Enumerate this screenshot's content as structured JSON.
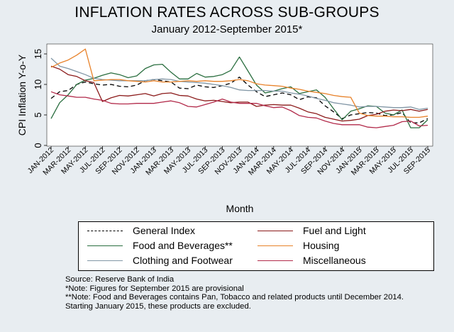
{
  "chart_data": {
    "type": "line",
    "title": "INFLATION RATES ACROSS SUB-GROUPS",
    "subtitle": "January 2012-September 2015*",
    "xlabel": "Month",
    "ylabel": "CPI Inflation Y-o-Y",
    "ylim": [
      0,
      17
    ],
    "yticks": [
      0,
      5,
      10,
      15
    ],
    "grid": false,
    "legend_position": "bottom",
    "x": [
      "JAN-2012",
      "FEB-2012",
      "MAR-2012",
      "APR-2012",
      "MAY-2012",
      "JUN-2012",
      "JUL-2012",
      "AUG-2012",
      "SEP-2012",
      "OCT-2012",
      "NOV-2012",
      "DEC-2012",
      "JAN-2013",
      "FEB-2013",
      "MAR-2013",
      "APR-2013",
      "MAY-2013",
      "JUN-2013",
      "JUL-2013",
      "AUG-2013",
      "SEP-2013",
      "OCT-2013",
      "NOV-2013",
      "DEC-2013",
      "JAN-2014",
      "FEB-2014",
      "MAR-2014",
      "APR-2014",
      "MAY-2014",
      "JUN-2014",
      "JUL-2014",
      "AUG-2014",
      "SEP-2014",
      "OCT-2014",
      "NOV-2014",
      "DEC-2014",
      "JAN-2015",
      "FEB-2015",
      "MAR-2015",
      "APR-2015",
      "MAY-2015",
      "JUN-2015",
      "JUL-2015",
      "AUG-2015",
      "SEP-2015"
    ],
    "xtick_labels": [
      "JAN-2012",
      "MAR-2012",
      "MAY-2012",
      "JUL-2012",
      "SEP-2012",
      "NOV-2012",
      "JAN-2013",
      "MAR-2013",
      "MAY-2013",
      "JUL-2013",
      "SEP-2013",
      "NOV-2013",
      "JAN-2014",
      "MAR-2014",
      "MAY-2014",
      "JUL-2014",
      "SEP-2014",
      "NOV-2014",
      "JAN-2015",
      "MAR-2015",
      "MAY-2015",
      "JUL-2015",
      "SEP-2015"
    ],
    "series": [
      {
        "name": "General Index",
        "color": "#000000",
        "dash": "dash",
        "values": [
          7.7,
          8.8,
          9.0,
          10.0,
          10.4,
          10.1,
          9.9,
          10.0,
          9.7,
          9.6,
          9.9,
          10.6,
          10.8,
          10.6,
          10.4,
          9.4,
          9.3,
          9.9,
          9.6,
          9.5,
          9.8,
          10.2,
          11.2,
          9.9,
          8.8,
          8.0,
          8.3,
          8.6,
          8.3,
          7.5,
          7.96,
          7.8,
          6.5,
          5.5,
          4.4,
          5.0,
          5.2,
          5.4,
          5.3,
          4.9,
          5.0,
          5.4,
          3.7,
          3.7,
          4.4
        ]
      },
      {
        "name": "Food and Beverages**",
        "color": "#2a6e3f",
        "dash": "solid",
        "values": [
          4.4,
          7.0,
          8.3,
          10.0,
          10.7,
          11.0,
          11.5,
          11.9,
          11.6,
          11.1,
          11.4,
          12.6,
          13.2,
          13.3,
          12.0,
          10.9,
          10.9,
          11.8,
          11.2,
          11.3,
          11.6,
          12.3,
          14.5,
          12.2,
          9.9,
          8.6,
          8.9,
          9.3,
          9.6,
          8.5,
          8.8,
          9.1,
          7.9,
          6.0,
          4.2,
          5.6,
          6.0,
          6.5,
          6.4,
          5.3,
          5.0,
          5.8,
          2.9,
          2.9,
          4.2
        ]
      },
      {
        "name": "Clothing and Footwear",
        "color": "#8196a5",
        "dash": "solid",
        "values": [
          14.3,
          13.0,
          12.6,
          12.1,
          11.6,
          11.0,
          10.8,
          10.7,
          10.6,
          10.6,
          10.6,
          10.6,
          10.8,
          10.9,
          10.8,
          10.5,
          10.4,
          10.3,
          10.2,
          10.0,
          9.8,
          9.5,
          9.1,
          9.0,
          9.0,
          9.0,
          8.9,
          8.9,
          8.6,
          8.4,
          8.1,
          7.7,
          7.4,
          7.0,
          6.8,
          6.6,
          6.3,
          6.4,
          6.4,
          6.3,
          6.2,
          6.2,
          6.3,
          5.9,
          6.1
        ]
      },
      {
        "name": "Fuel and Light",
        "color": "#8b1a1a",
        "dash": "solid",
        "values": [
          13.0,
          12.5,
          11.6,
          11.3,
          10.6,
          10.3,
          7.2,
          7.8,
          8.2,
          8.1,
          8.3,
          8.5,
          8.1,
          8.5,
          8.6,
          8.2,
          8.1,
          7.6,
          7.3,
          7.4,
          7.2,
          7.0,
          7.1,
          7.1,
          6.4,
          6.6,
          6.7,
          6.6,
          6.6,
          6.1,
          5.5,
          5.2,
          4.6,
          4.3,
          4.0,
          4.1,
          4.3,
          4.9,
          5.1,
          5.6,
          5.8,
          5.7,
          5.9,
          5.6,
          5.9
        ]
      },
      {
        "name": "Housing",
        "color": "#e8822a",
        "dash": "solid",
        "values": [
          12.8,
          13.5,
          14.0,
          14.8,
          15.8,
          10.6,
          10.7,
          10.8,
          10.8,
          10.6,
          10.5,
          10.4,
          10.6,
          10.4,
          10.4,
          10.5,
          10.6,
          10.5,
          10.6,
          10.5,
          10.5,
          10.6,
          10.8,
          10.6,
          10.1,
          9.9,
          9.8,
          9.7,
          9.4,
          9.2,
          8.9,
          8.7,
          8.5,
          8.2,
          8.0,
          7.9,
          5.3,
          4.9,
          4.8,
          4.8,
          4.7,
          4.7,
          4.6,
          4.6,
          4.8
        ]
      },
      {
        "name": "Miscellaneous",
        "color": "#b22a4a",
        "dash": "solid",
        "values": [
          8.8,
          8.3,
          8.1,
          7.9,
          7.9,
          7.6,
          7.4,
          6.9,
          6.8,
          6.8,
          6.9,
          6.9,
          6.9,
          7.1,
          7.3,
          7.0,
          6.4,
          6.3,
          6.7,
          7.1,
          7.6,
          7.1,
          6.9,
          6.9,
          6.9,
          6.5,
          6.2,
          6.3,
          5.7,
          4.9,
          4.6,
          4.5,
          4.0,
          3.6,
          3.4,
          3.4,
          3.4,
          3.0,
          2.9,
          3.1,
          3.3,
          3.9,
          4.0,
          3.2,
          3.3
        ]
      }
    ]
  },
  "source_notes": [
    "Source: Reserve Bank of India",
    "*Note: Figures for September 2015 are provisional",
    "**Note: Food and Beverages contains Pan, Tobacco and related products until December 2014.",
    "Starting January 2015, these products are excluded."
  ]
}
